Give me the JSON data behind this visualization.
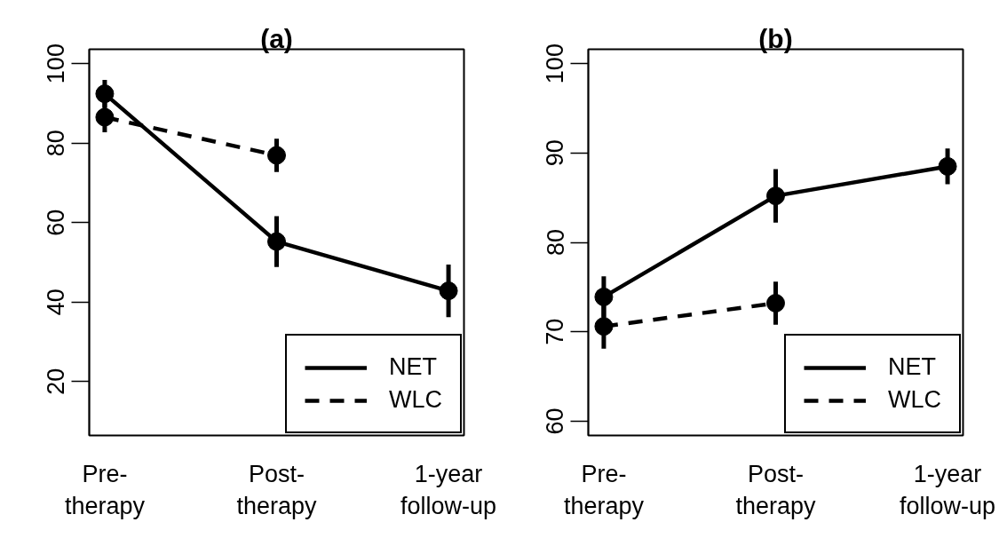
{
  "chart_data": [
    {
      "type": "line",
      "title": "(a)",
      "categories": [
        "Pre-therapy",
        "Post-therapy",
        "1-year follow-up"
      ],
      "ylim": [
        6.4,
        103.6
      ],
      "yticks": [
        20,
        40,
        60,
        80,
        100
      ],
      "grid": false,
      "legend": "bottom right",
      "marker": "circle",
      "series": [
        {
          "name": "NET",
          "color": "#000000",
          "line_style": "solid",
          "values": [
            92.4,
            55.2,
            42.8
          ],
          "errors": [
            3.5,
            6.4,
            6.6
          ]
        },
        {
          "name": "WLC",
          "color": "#000000",
          "line_style": "dashed",
          "values": [
            86.5,
            76.9,
            null
          ],
          "errors": [
            3.8,
            4.2,
            null
          ]
        }
      ]
    },
    {
      "type": "line",
      "title": "(b)",
      "categories": [
        "Pre-therapy",
        "Post-therapy",
        "1-year follow-up"
      ],
      "ylim": [
        58.4,
        101.6
      ],
      "yticks": [
        60,
        70,
        80,
        90,
        100
      ],
      "grid": false,
      "legend": "bottom right",
      "marker": "circle",
      "series": [
        {
          "name": "NET",
          "color": "#000000",
          "line_style": "solid",
          "values": [
            73.9,
            85.2,
            88.5
          ],
          "errors": [
            2.3,
            3.0,
            2.0
          ]
        },
        {
          "name": "WLC",
          "color": "#000000",
          "line_style": "dashed",
          "values": [
            70.6,
            73.2,
            null
          ],
          "errors": [
            2.5,
            2.4,
            null
          ]
        }
      ]
    }
  ]
}
